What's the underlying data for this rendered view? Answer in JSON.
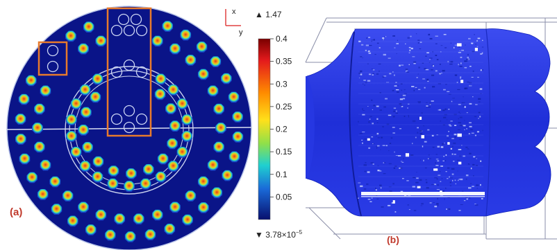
{
  "panels": {
    "a": {
      "label": "(a)"
    },
    "b": {
      "label": "(b)"
    }
  },
  "axes_indicator": {
    "x_label": "x",
    "y_label": "y"
  },
  "colorbar": {
    "max_label": "▲ 1.47",
    "min_label": "▼ 3.78×10",
    "min_exponent": "−5",
    "ticks": [
      "0.4",
      "0.35",
      "0.3",
      "0.25",
      "0.2",
      "0.15",
      "0.1",
      "0.05"
    ],
    "range": [
      0,
      0.4
    ]
  },
  "colors": {
    "field_background": "#0a1488",
    "highlight_box": "#e87a2c",
    "panel_label": "#c0392b",
    "axes_indicator": "#e04040",
    "fluid_body": "#2435e0",
    "hotspot": "#e53b10"
  }
}
